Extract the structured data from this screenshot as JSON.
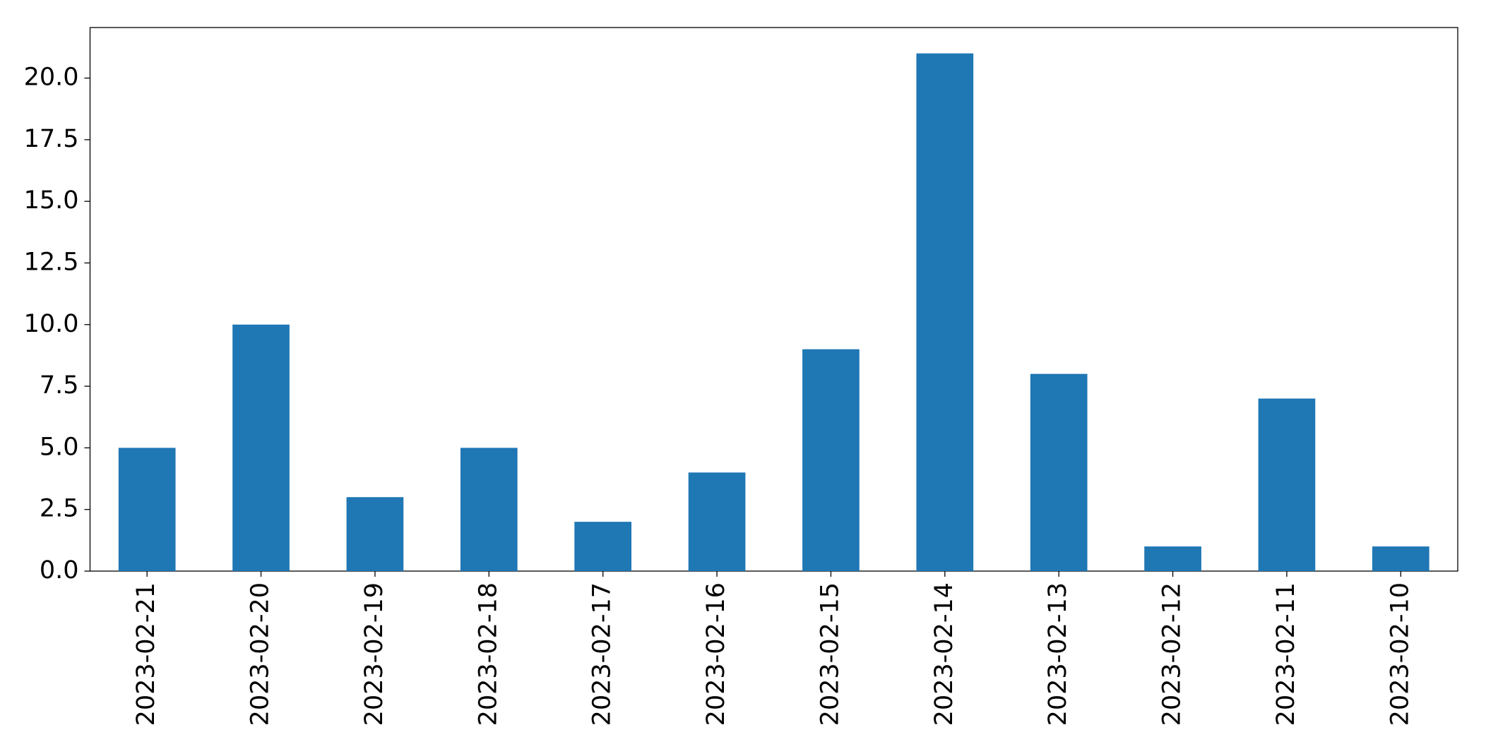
{
  "chart_data": {
    "type": "bar",
    "categories": [
      "2023-02-21",
      "2023-02-20",
      "2023-02-19",
      "2023-02-18",
      "2023-02-17",
      "2023-02-16",
      "2023-02-15",
      "2023-02-14",
      "2023-02-13",
      "2023-02-12",
      "2023-02-11",
      "2023-02-10"
    ],
    "values": [
      5,
      10,
      3,
      5,
      2,
      4,
      9,
      21,
      8,
      1,
      7,
      1
    ],
    "color": "#1f77b4",
    "ylim": [
      0,
      22.05
    ],
    "yticks": [
      {
        "value": 0,
        "label": "0.0"
      },
      2.5,
      {
        "value": 5,
        "label": "5.0"
      },
      7.5,
      {
        "value": 10,
        "label": "10.0"
      },
      12.5,
      {
        "value": 15,
        "label": "15.0"
      },
      17.5,
      {
        "value": 20,
        "label": "20.0"
      }
    ],
    "grid": false
  }
}
